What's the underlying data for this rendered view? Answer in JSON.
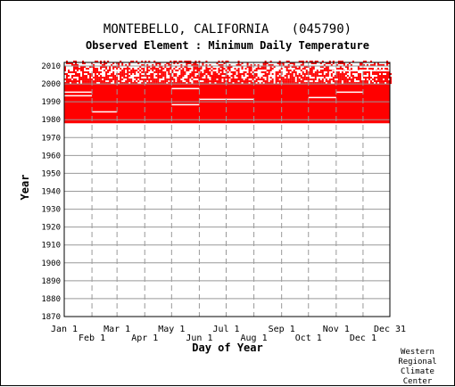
{
  "header": {
    "title": "MONTEBELLO, CALIFORNIA   (045790)",
    "subtitle": "Observed Element : Minimum Daily Temperature"
  },
  "credit": {
    "line1": "Western",
    "line2": "Regional",
    "line3": "Climate",
    "line4": "Center"
  },
  "chart_data": {
    "type": "heatmap",
    "xlabel": "Day of Year",
    "ylabel": "Year",
    "x_ticks_upper": [
      "Jan 1",
      "Mar 1",
      "May 1",
      "Jul 1",
      "Sep 1",
      "Nov 1",
      "Dec 31"
    ],
    "x_ticks_lower": [
      "Feb 1",
      "Apr 1",
      "Jun 1",
      "Aug 1",
      "Oct 1",
      "Dec 1"
    ],
    "x_tick_days": [
      1,
      32,
      60,
      91,
      121,
      152,
      182,
      213,
      244,
      274,
      305,
      335,
      365
    ],
    "y_ticks": [
      1870,
      1880,
      1890,
      1900,
      1910,
      1920,
      1930,
      1940,
      1950,
      1960,
      1970,
      1980,
      1990,
      2000,
      2010
    ],
    "ylim": [
      1870,
      2012
    ],
    "xlim": [
      1,
      365
    ],
    "grid": true,
    "colors": {
      "observed": "#ff0000",
      "grid": "#999999",
      "axis": "#000000"
    },
    "coverage": {
      "full_start_year": 1978,
      "full_end_year": 1999,
      "sparse_start_year": 2000,
      "sparse_end_year": 2012,
      "sparse_density": 0.55
    },
    "missing_segments": [
      {
        "year": 1995,
        "start_day": 1,
        "end_day": 32
      },
      {
        "year": 1993,
        "start_day": 1,
        "end_day": 32
      },
      {
        "year": 1984,
        "start_day": 32,
        "end_day": 60
      },
      {
        "year": 1997,
        "start_day": 121,
        "end_day": 152
      },
      {
        "year": 1988,
        "start_day": 121,
        "end_day": 152
      },
      {
        "year": 1991,
        "start_day": 152,
        "end_day": 213
      },
      {
        "year": 1992,
        "start_day": 274,
        "end_day": 305
      },
      {
        "year": 1995,
        "start_day": 305,
        "end_day": 335
      },
      {
        "year": 2009,
        "start_day": 335,
        "end_day": 365
      },
      {
        "year": 2007,
        "start_day": 300,
        "end_day": 365
      }
    ]
  }
}
